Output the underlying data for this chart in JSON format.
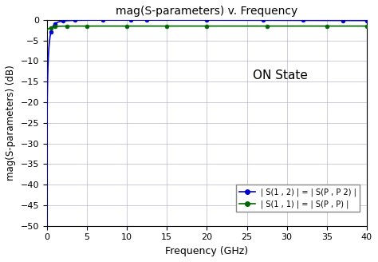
{
  "title": "mag(S-parameters) v. Frequency",
  "xlabel": "Frequency (GHz)",
  "ylabel": "mag(S-parameters) (dB)",
  "annotation": "ON State",
  "xlim": [
    0,
    40
  ],
  "ylim": [
    -50,
    0
  ],
  "xticks": [
    0,
    5,
    10,
    15,
    20,
    25,
    30,
    35,
    40
  ],
  "yticks": [
    0,
    -5,
    -10,
    -15,
    -20,
    -25,
    -30,
    -35,
    -40,
    -45,
    -50
  ],
  "s21_color": "#0000cc",
  "s11_color": "#006600",
  "legend_s21": "| S(1 , 2) | = | S(P , P 2) |",
  "legend_s11": "| S(1 , 1) | = | S(P , P) |",
  "background_color": "#ffffff",
  "grid_color": "#b0b0c8",
  "s21_markers": [
    0.5,
    1.0,
    2.0,
    3.5,
    7.0,
    10.5,
    12.5,
    20,
    27,
    32,
    37,
    40
  ],
  "s11_markers": [
    0.5,
    1.0,
    2.5,
    5.0,
    10.0,
    15.0,
    20.0,
    27.5,
    35.0,
    40.0
  ]
}
